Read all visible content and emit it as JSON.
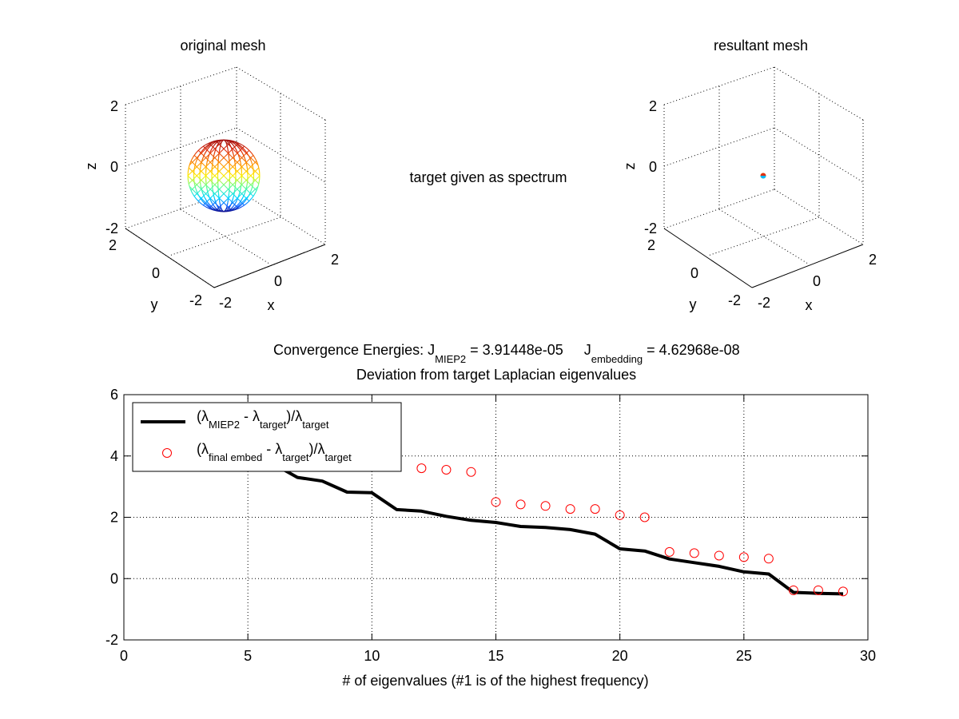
{
  "top_left": {
    "title": "original mesh",
    "xlabel": "x",
    "ylabel": "y",
    "zlabel": "z",
    "z_ticks": [
      "2",
      "0",
      "-2"
    ],
    "y_ticks": [
      "2",
      "0",
      "-2"
    ],
    "x_ticks": [
      "-2",
      "0",
      "2"
    ]
  },
  "top_right": {
    "title": "resultant mesh",
    "xlabel": "x",
    "ylabel": "y",
    "zlabel": "z",
    "z_ticks": [
      "2",
      "0",
      "-2"
    ],
    "y_ticks": [
      "2",
      "0",
      "-2"
    ],
    "x_ticks": [
      "-2",
      "0",
      "2"
    ]
  },
  "center_text": "target given as spectrum",
  "energies": {
    "prefix": "Convergence Energies: J",
    "sub1": "MIEP2",
    "mid": " = 3.91448e-05",
    "j2": "J",
    "sub2": "embedding",
    "end": " = 4.62968e-08"
  },
  "legend": {
    "s1": {
      "lam": "(λ",
      "sub_a": "MIEP2",
      "mid": " - λ",
      "sub_b": "target",
      "mid2": ")/λ",
      "sub_c": "target"
    },
    "s2": {
      "lam": "(λ",
      "sub_a": "final embed",
      "mid": " - λ",
      "sub_b": "target",
      "mid2": ")/λ",
      "sub_c": "target"
    }
  },
  "chart_data": {
    "type": "line",
    "title": "Deviation from target Laplacian eigenvalues",
    "xlabel": "# of eigenvalues (#1 is of the highest frequency)",
    "ylabel": "",
    "xlim": [
      0,
      30
    ],
    "ylim": [
      -2,
      6
    ],
    "x_ticks": [
      0,
      5,
      10,
      15,
      20,
      25,
      30
    ],
    "y_ticks": [
      -2,
      0,
      2,
      4,
      6
    ],
    "grid": true,
    "legend_position": "top-left",
    "series": [
      {
        "style": "line",
        "color": "#000000",
        "x": [
          6,
          7,
          8,
          9,
          10,
          11,
          12,
          13,
          14,
          15,
          16,
          17,
          18,
          19,
          20,
          21,
          22,
          23,
          24,
          25,
          26,
          27,
          28,
          29
        ],
        "values": [
          3.75,
          3.3,
          3.18,
          2.82,
          2.8,
          2.25,
          2.2,
          2.03,
          1.9,
          1.83,
          1.7,
          1.67,
          1.6,
          1.45,
          0.97,
          0.9,
          0.64,
          0.52,
          0.4,
          0.22,
          0.15,
          -0.45,
          -0.48,
          -0.5
        ]
      },
      {
        "style": "marker",
        "color": "#ff0000",
        "x": [
          12,
          13,
          14,
          15,
          16,
          17,
          18,
          19,
          20,
          21,
          22,
          23,
          24,
          25,
          26,
          27,
          28,
          29
        ],
        "values": [
          3.6,
          3.55,
          3.48,
          2.5,
          2.42,
          2.37,
          2.27,
          2.27,
          2.07,
          2.0,
          0.87,
          0.83,
          0.75,
          0.7,
          0.65,
          -0.38,
          -0.38,
          -0.42
        ]
      }
    ]
  }
}
